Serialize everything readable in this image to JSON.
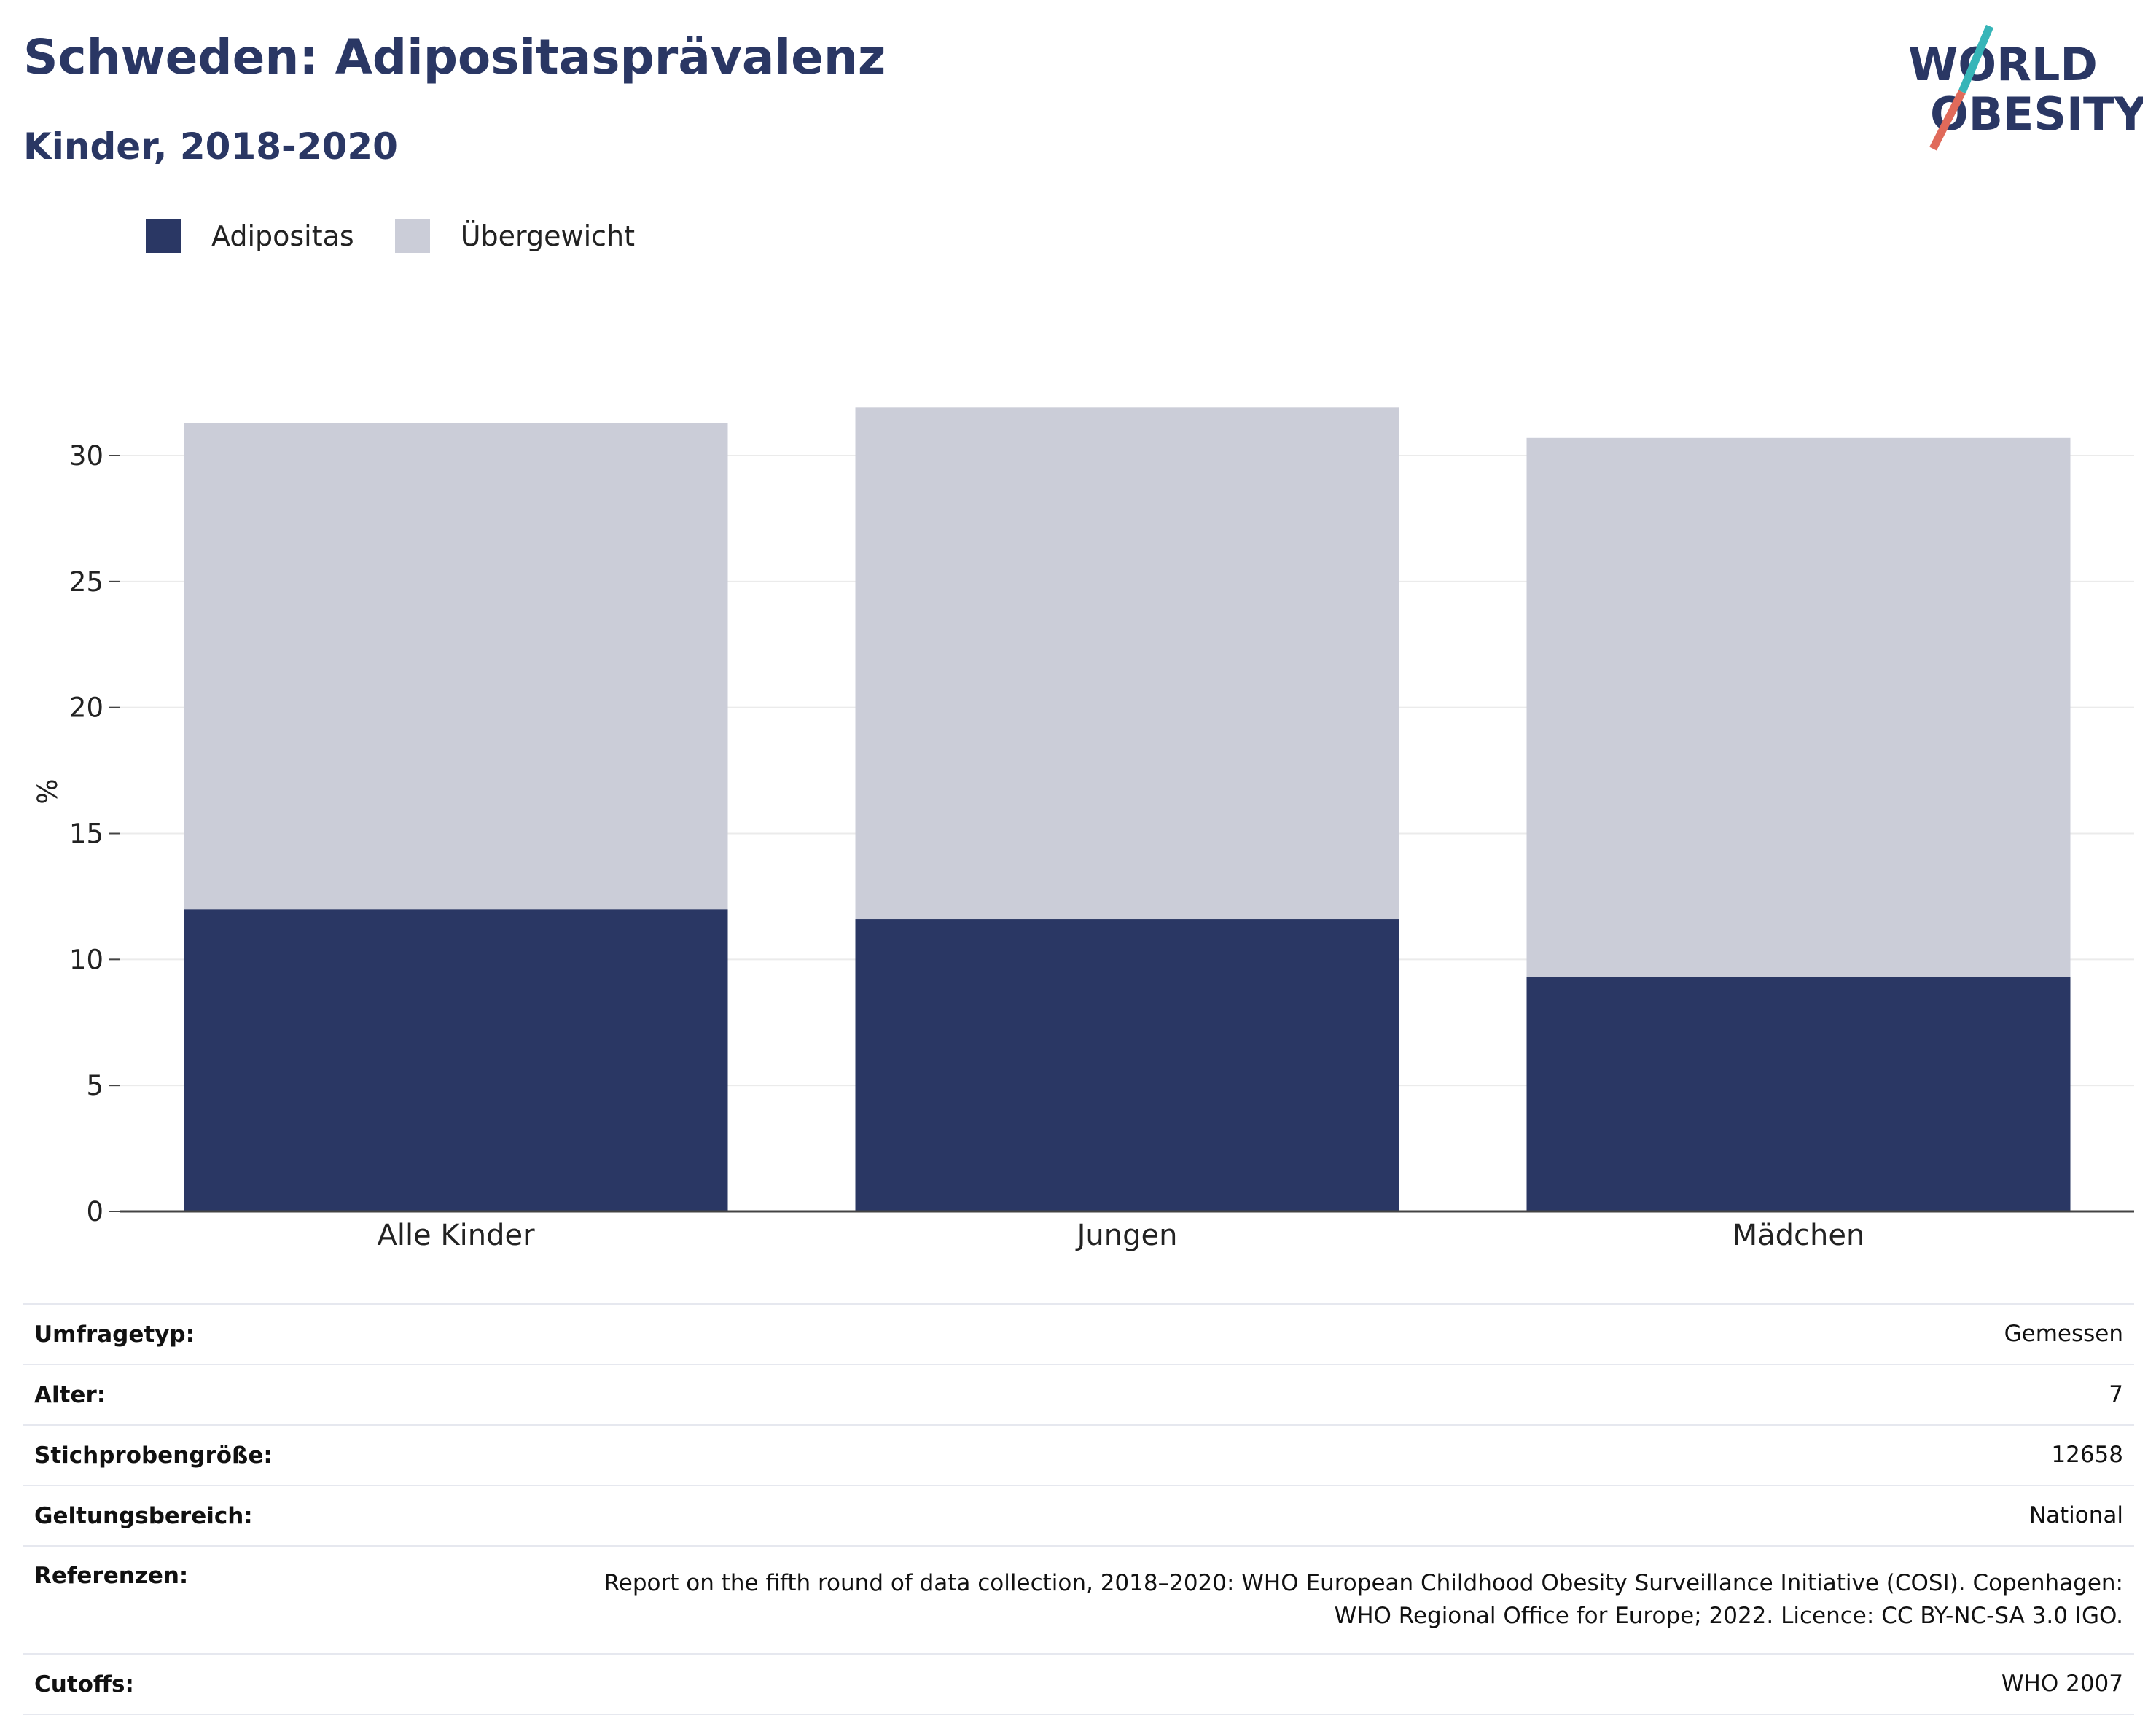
{
  "header": {
    "title": "Schweden: Adipositasprävalenz",
    "subtitle": "Kinder, 2018-2020"
  },
  "logo": {
    "line1": "WORLD",
    "line2": "OBESITY",
    "colors": {
      "text": "#2a3764",
      "slash_top": "#37b5b8",
      "slash_bottom": "#e06a5a"
    }
  },
  "legend": [
    {
      "label": "Adipositas",
      "color": "#2a3764"
    },
    {
      "label": "Übergewicht",
      "color": "#cbcdd8"
    }
  ],
  "chart_data": {
    "type": "bar",
    "stacked": true,
    "categories": [
      "Alle Kinder",
      "Jungen",
      "Mädchen"
    ],
    "series": [
      {
        "name": "Adipositas",
        "color": "#2a3764",
        "values": [
          12.0,
          11.6,
          9.3
        ]
      },
      {
        "name": "Übergewicht",
        "color": "#cbcdd8",
        "values": [
          19.3,
          20.3,
          21.4
        ]
      }
    ],
    "ylabel": "%",
    "ylim": [
      0,
      32
    ],
    "yticks": [
      0,
      5,
      10,
      15,
      20,
      25,
      30
    ],
    "grid": true,
    "legend_position": "top-left"
  },
  "info_table": [
    {
      "key": "Umfragetyp:",
      "value": "Gemessen"
    },
    {
      "key": "Alter:",
      "value": "7"
    },
    {
      "key": "Stichprobengröße:",
      "value": "12658"
    },
    {
      "key": "Geltungsbereich:",
      "value": "National"
    },
    {
      "key": "Referenzen:",
      "value_lines": [
        "Report on the fifth round of data collection, 2018–2020: WHO European Childhood Obesity Surveillance Initiative (COSI). Copenhagen:",
        "WHO Regional Office for Europe; 2022. Licence: CC BY-NC-SA 3.0 IGO."
      ]
    },
    {
      "key": "Cutoffs:",
      "value": "WHO 2007"
    }
  ]
}
